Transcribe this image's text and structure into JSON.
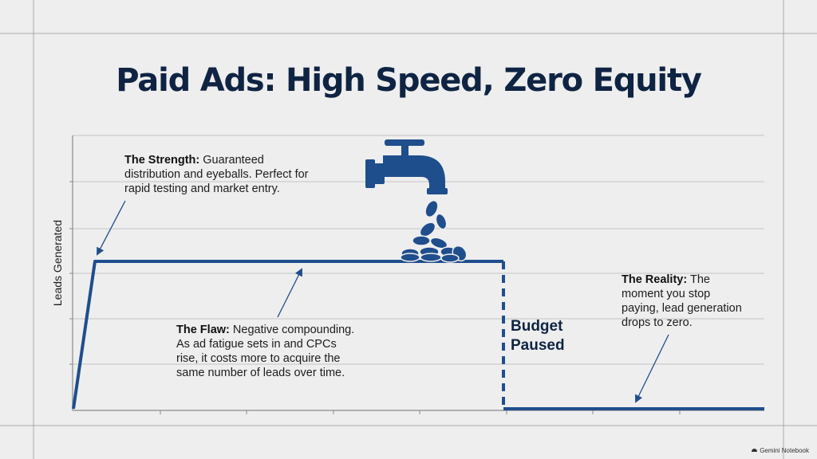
{
  "title": "Paid Ads: High Speed, Zero Equity",
  "y_axis_label": "Leads Generated",
  "strength": {
    "label": "The Strength:",
    "text": "Guaranteed distribution and eyeballs. Perfect for rapid testing and market entry."
  },
  "flaw": {
    "label": "The Flaw:",
    "text": "Negative compounding. As ad fatigue sets in and CPCs rise, it costs more to acquire the same number of leads over time."
  },
  "reality": {
    "label": "The Reality:",
    "text": "The moment you stop paying, lead generation drops to zero."
  },
  "budget_paused": {
    "line1": "Budget",
    "line2": "Paused"
  },
  "footer_brand": "Gemini Notebook",
  "icons": [
    "faucet-icon",
    "coin-stack-icon"
  ],
  "colors": {
    "navy": "#1f4e8c",
    "title": "#0f2443",
    "background": "#eeeeee",
    "grid": "#bfbfbf"
  }
}
